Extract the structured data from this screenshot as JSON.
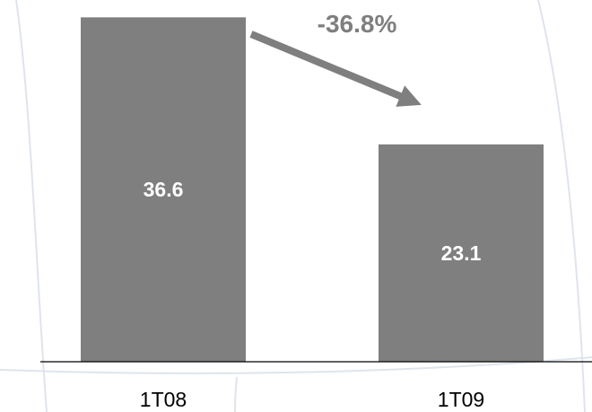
{
  "colors": {
    "bar": "#7f7f7f",
    "arrow": "#7f7f7f",
    "change_text": "#7f7f7f",
    "axis": "#000000",
    "background_lines": "#dfe4ec"
  },
  "annotation": {
    "change_label": "-36.8%",
    "icon": "arrow-down-right-icon"
  },
  "chart_data": {
    "type": "bar",
    "categories": [
      "1T08",
      "1T09"
    ],
    "values": [
      36.6,
      23.1
    ],
    "value_labels": [
      "36.6",
      "23.1"
    ],
    "title": "",
    "xlabel": "",
    "ylabel": "",
    "ylim": [
      0,
      37.3
    ],
    "grid": false,
    "legend": "none"
  }
}
